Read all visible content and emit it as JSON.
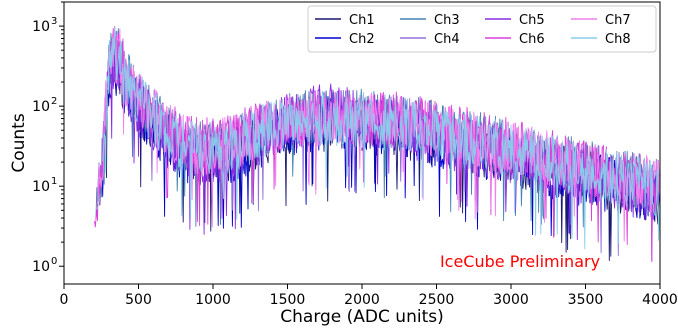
{
  "chart_data": {
    "type": "line",
    "title": "",
    "xlabel": "Charge (ADC units)",
    "ylabel": "Counts",
    "xlim": [
      0,
      4000
    ],
    "ylim": [
      0.6,
      2000
    ],
    "yscale": "log",
    "grid": false,
    "legend_placement": "top-right",
    "legend_columns": 4,
    "x_ticks": [
      0,
      500,
      1000,
      1500,
      2000,
      2500,
      3000,
      3500,
      4000
    ],
    "x_tick_labels": [
      "0",
      "500",
      "1000",
      "1500",
      "2000",
      "2500",
      "3000",
      "3500",
      "4000"
    ],
    "y_ticks": [
      1,
      10,
      100,
      1000
    ],
    "y_tick_labels": [
      "10",
      "10",
      "10",
      "10"
    ],
    "y_tick_exponents": [
      "0",
      "1",
      "2",
      "3"
    ],
    "annotation": {
      "text": "IceCube Preliminary",
      "color": "#ff0000",
      "x": 3000,
      "y": 1.0
    },
    "envelope": {
      "x": [
        200,
        260,
        300,
        340,
        380,
        450,
        500,
        600,
        700,
        800,
        900,
        1000,
        1100,
        1200,
        1300,
        1400,
        1500,
        1600,
        1700,
        1800,
        1900,
        2000,
        2200,
        2400,
        2600,
        2800,
        3000,
        3200,
        3400,
        3600,
        3800,
        4000
      ],
      "y": [
        3,
        20,
        300,
        400,
        280,
        160,
        120,
        70,
        45,
        32,
        28,
        28,
        30,
        36,
        44,
        54,
        62,
        68,
        72,
        74,
        73,
        70,
        62,
        52,
        42,
        34,
        27,
        21,
        17,
        14,
        11,
        9
      ]
    },
    "series": [
      {
        "name": "Ch1",
        "color": "#191970",
        "scale": 0.82,
        "peak": 1.0
      },
      {
        "name": "Ch2",
        "color": "#0000cd",
        "scale": 0.8,
        "peak": 1.05
      },
      {
        "name": "Ch3",
        "color": "#4682b4",
        "scale": 1.1,
        "peak": 0.95
      },
      {
        "name": "Ch4",
        "color": "#9370db",
        "scale": 1.05,
        "peak": 0.95
      },
      {
        "name": "Ch5",
        "color": "#8a2be2",
        "scale": 0.85,
        "peak": 1.35
      },
      {
        "name": "Ch6",
        "color": "#da40da",
        "scale": 1.15,
        "peak": 0.85
      },
      {
        "name": "Ch7",
        "color": "#ee82ee",
        "scale": 1.1,
        "peak": 0.9
      },
      {
        "name": "Ch8",
        "color": "#87ceeb",
        "scale": 1.0,
        "peak": 0.95
      }
    ]
  }
}
